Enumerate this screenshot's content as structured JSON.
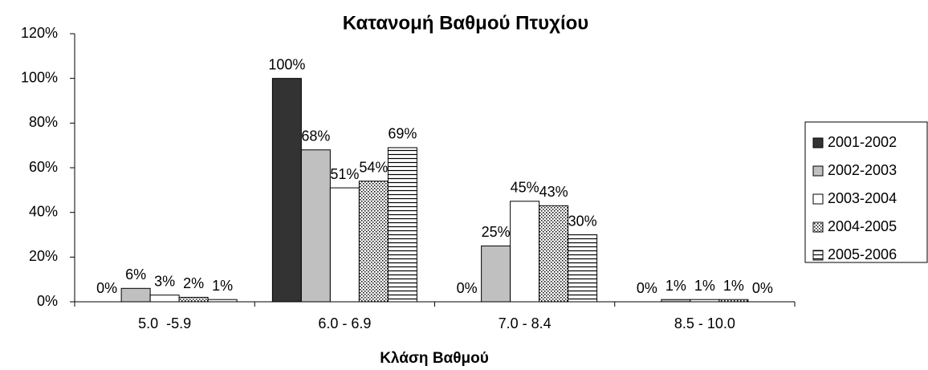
{
  "chart_data": {
    "type": "bar",
    "title": "Κατανομή Βαθμού Πτυχίου",
    "x_label": "Κλάση Βαθμού",
    "categories": [
      "5.0  -5.9",
      "6.0 - 6.9",
      "7.0 - 8.4",
      "8.5 - 10.0"
    ],
    "series": [
      {
        "name": "2001-2002",
        "color": "#333333",
        "pattern": "solid",
        "values": [
          0,
          100,
          0,
          0
        ],
        "value_labels": [
          "0%",
          "100%",
          "0%",
          "0%"
        ]
      },
      {
        "name": "2002-2003",
        "color": "#c0c0c0",
        "pattern": "solid",
        "values": [
          6,
          68,
          25,
          1
        ],
        "value_labels": [
          "6%",
          "68%",
          "25%",
          "1%"
        ]
      },
      {
        "name": "2003-2004",
        "color": "#ffffff",
        "pattern": "solid",
        "values": [
          3,
          51,
          45,
          1
        ],
        "value_labels": [
          "3%",
          "51%",
          "45%",
          "1%"
        ]
      },
      {
        "name": "2004-2005",
        "color": "#ffffff",
        "pattern": "dots",
        "values": [
          2,
          54,
          43,
          1
        ],
        "value_labels": [
          "2%",
          "54%",
          "43%",
          "1%"
        ]
      },
      {
        "name": "2005-2006",
        "color": "#ffffff",
        "pattern": "hlines",
        "values": [
          1,
          69,
          30,
          0
        ],
        "value_labels": [
          "1%",
          "69%",
          "30%",
          "0%"
        ]
      }
    ],
    "ylim": [
      0,
      120
    ],
    "yticks": [
      {
        "value": 0,
        "label": "0%"
      },
      {
        "value": 20,
        "label": "20%"
      },
      {
        "value": 40,
        "label": "40%"
      },
      {
        "value": 60,
        "label": "60%"
      },
      {
        "value": 80,
        "label": "80%"
      },
      {
        "value": 100,
        "label": "100%"
      },
      {
        "value": 120,
        "label": "120%"
      }
    ],
    "legend": "right",
    "grid": false
  }
}
